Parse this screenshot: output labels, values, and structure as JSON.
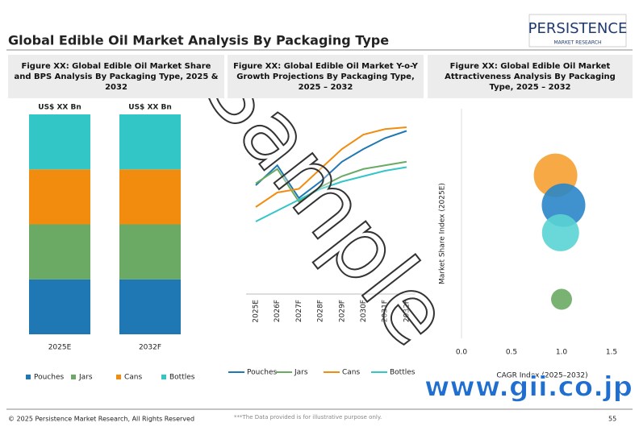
{
  "header": {
    "title": "Global Edible Oil Market Analysis By Packaging Type",
    "logo": "PERSISTENCE",
    "logo_sub": "MARKET RESEARCH"
  },
  "chart_data": [
    {
      "type": "bar",
      "stacked": true,
      "title": "Figure XX: Global Edible Oil  Market Share and BPS Analysis By Packaging Type, 2025 & 2032",
      "categories": [
        "2025E",
        "2032F"
      ],
      "value_labels": [
        "US$ XX Bn",
        "US$ XX Bn"
      ],
      "ylim": [
        0,
        100
      ],
      "series": [
        {
          "name": "Pouches",
          "color": "#1f77b4",
          "values": [
            25,
            25
          ]
        },
        {
          "name": "Jars",
          "color": "#6aaa64",
          "values": [
            25,
            25
          ]
        },
        {
          "name": "Cans",
          "color": "#f28c0f",
          "values": [
            25,
            25
          ]
        },
        {
          "name": "Bottles",
          "color": "#33c6c6",
          "values": [
            25,
            25
          ]
        }
      ]
    },
    {
      "type": "line",
      "title": "Figure XX: Global Edible Oil  Market Y-o-Y Growth Projections By Packaging Type, 2025 – 2032",
      "categories": [
        "2025E",
        "2026F",
        "2027F",
        "2028F",
        "2029F",
        "2030F",
        "2031F",
        "2032F"
      ],
      "ylim": [
        0,
        100
      ],
      "series": [
        {
          "name": "Pouches",
          "color": "#1f77b4",
          "values": [
            60,
            71,
            53,
            62,
            73,
            80,
            86,
            90
          ]
        },
        {
          "name": "Jars",
          "color": "#6aaa64",
          "values": [
            61,
            69,
            51,
            59,
            65,
            69,
            71,
            73
          ]
        },
        {
          "name": "Cans",
          "color": "#f28c0f",
          "values": [
            48,
            56,
            58,
            69,
            80,
            88,
            91,
            92
          ]
        },
        {
          "name": "Bottles",
          "color": "#33c6c6",
          "values": [
            40,
            46,
            52,
            58,
            62,
            65,
            68,
            70
          ]
        }
      ]
    },
    {
      "type": "bubble",
      "title": "Figure XX: Global Edible Oil  Market Attractiveness Analysis By Packaging Type, 2025 – 2032",
      "x_label": "CAGR Index (2025–2032)",
      "y_label": "Market Share Index (2025E)",
      "xlim": [
        0,
        1.5
      ],
      "xticks": [
        {
          "value": 0,
          "label": "0.0"
        },
        {
          "value": 0.5,
          "label": "0.5"
        },
        {
          "value": 1,
          "label": "1.0"
        },
        {
          "value": 1.5,
          "label": "1.5"
        }
      ],
      "ylim": [
        0,
        1
      ],
      "points": [
        {
          "x": 0.94,
          "y": 0.71,
          "size": 27,
          "color": "#f5a030"
        },
        {
          "x": 1.02,
          "y": 0.58,
          "size": 27,
          "color": "#2a86c8"
        },
        {
          "x": 0.99,
          "y": 0.46,
          "size": 23,
          "color": "#5ad4d4"
        },
        {
          "x": 1.0,
          "y": 0.17,
          "size": 13,
          "color": "#6aaa64"
        }
      ]
    }
  ],
  "footer": {
    "copyright": "© 2025 Persistence Market Research, All Rights Reserved",
    "note": "***The Data provided is for illustrative purpose only.",
    "page": "55"
  },
  "watermark": "Sample",
  "stamp": "www.gii.co.jp"
}
